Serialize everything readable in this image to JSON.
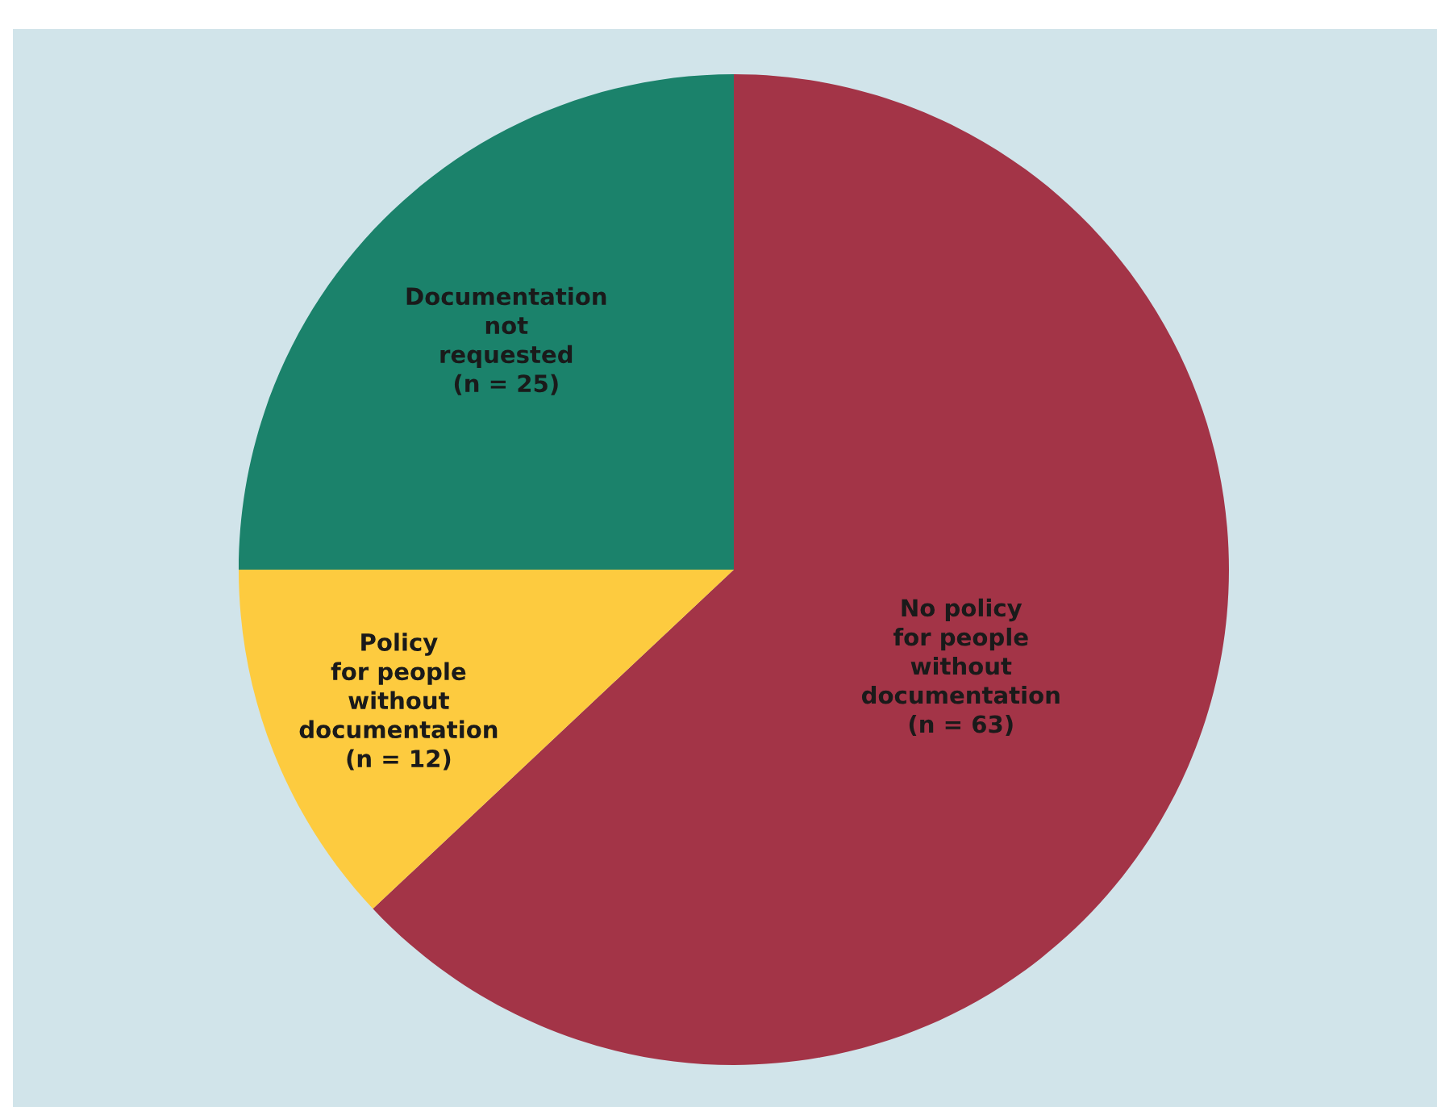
{
  "chart_data": {
    "type": "pie",
    "categories": [
      "No policy\nfor people\nwithout\ndocumentation\n(n = 63)",
      "Policy\nfor people\nwithout\ndocumentation\n(n = 12)",
      "Documentation\nnot\nrequested\n(n = 25)"
    ],
    "values": [
      63,
      12,
      25
    ],
    "colors": [
      "#a33447",
      "#fdcb3f",
      "#1b826b"
    ]
  }
}
